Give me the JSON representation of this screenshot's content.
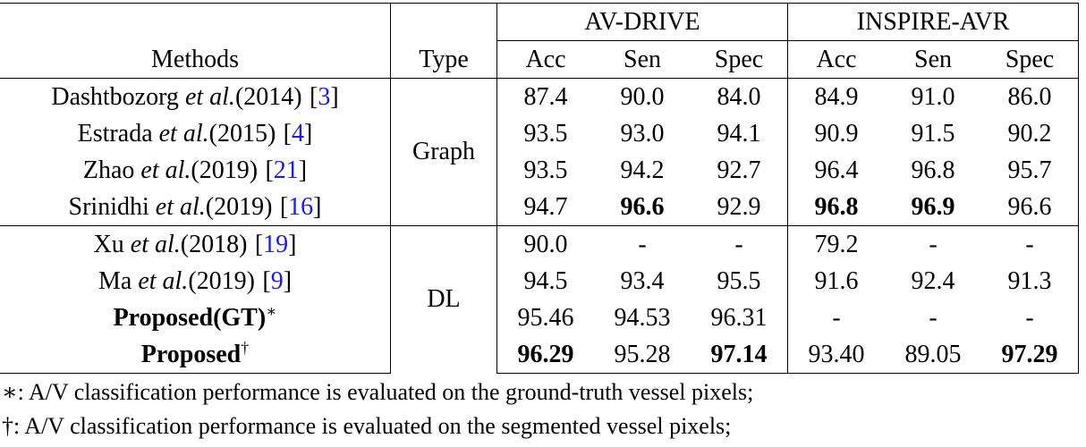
{
  "table": {
    "header": {
      "methods": "Methods",
      "type": "Type",
      "datasets": [
        "AV-DRIVE",
        "INSPIRE-AVR"
      ],
      "metrics": [
        "Acc",
        "Sen",
        "Spec",
        "Acc",
        "Sen",
        "Spec"
      ]
    },
    "groups": [
      {
        "type": "Graph",
        "rows": [
          {
            "method": {
              "author": "Dashtbozorg",
              "etal": "et al.",
              "year": "(2014)",
              "cite_open": "[",
              "cite": "3",
              "cite_close": "]"
            },
            "values": [
              "87.4",
              "90.0",
              "84.0",
              "84.9",
              "91.0",
              "86.0"
            ]
          },
          {
            "method": {
              "author": "Estrada",
              "etal": "et al.",
              "year": "(2015)",
              "cite_open": "[",
              "cite": "4",
              "cite_close": "]"
            },
            "values": [
              "93.5",
              "93.0",
              "94.1",
              "90.9",
              "91.5",
              "90.2"
            ]
          },
          {
            "method": {
              "author": "Zhao",
              "etal": "et al.",
              "year": "(2019)",
              "cite_open": "[",
              "cite": "21",
              "cite_close": "]"
            },
            "values": [
              "93.5",
              "94.2",
              "92.7",
              "96.4",
              "96.8",
              "95.7"
            ]
          },
          {
            "method": {
              "author": "Srinidhi",
              "etal": "et al.",
              "year": "(2019)",
              "cite_open": "[",
              "cite": "16",
              "cite_close": "]"
            },
            "values": [
              "94.7",
              "96.6",
              "92.9",
              "96.8",
              "96.9",
              "96.6"
            ],
            "bold": [
              false,
              true,
              false,
              true,
              true,
              false
            ]
          }
        ]
      },
      {
        "type": "DL",
        "rows": [
          {
            "method": {
              "author": "Xu",
              "etal": "et al.",
              "year": "(2018)",
              "cite_open": "[",
              "cite": "19",
              "cite_close": "]"
            },
            "values": [
              "90.0",
              "-",
              "-",
              "79.2",
              "-",
              "-"
            ]
          },
          {
            "method": {
              "author": "Ma",
              "etal": "et al.",
              "year": "(2019)",
              "cite_open": "[",
              "cite": "9",
              "cite_close": "]"
            },
            "values": [
              "94.5",
              "93.4",
              "95.5",
              "91.6",
              "92.4",
              "91.3"
            ]
          },
          {
            "method": {
              "name": "Proposed(GT)",
              "mark": "∗"
            },
            "values": [
              "95.46",
              "94.53",
              "96.31",
              "-",
              "-",
              "-"
            ]
          },
          {
            "method": {
              "name": "Proposed",
              "mark": "†"
            },
            "values": [
              "96.29",
              "95.28",
              "97.14",
              "93.40",
              "89.05",
              "97.29"
            ],
            "bold": [
              true,
              false,
              true,
              false,
              false,
              true
            ]
          }
        ]
      }
    ]
  },
  "footnotes": [
    "∗: A/V classification performance is evaluated on the ground-truth vessel pixels;",
    "†: A/V classification performance is evaluated on the segmented vessel pixels;"
  ]
}
